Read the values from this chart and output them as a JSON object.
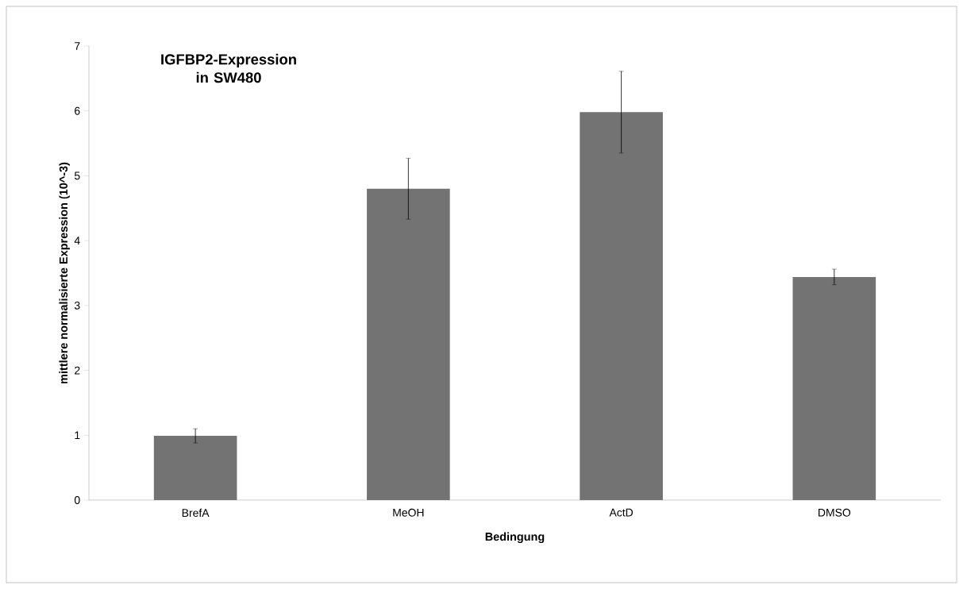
{
  "chart_data": {
    "type": "bar",
    "title": "IGFBP2-Expression\nin SW480",
    "xlabel": "Bedingung",
    "ylabel": "mittlere normalisierte Expression (10^-3)",
    "categories": [
      "BrefA",
      "MeOH",
      "ActD",
      "DMSO"
    ],
    "values": [
      0.99,
      4.8,
      5.98,
      3.44
    ],
    "errors": [
      0.11,
      0.47,
      0.63,
      0.12
    ],
    "color": "#737373",
    "ylim": [
      0,
      7
    ],
    "yticks": [
      0,
      1,
      2,
      3,
      4,
      5,
      6,
      7
    ],
    "grid": false
  }
}
